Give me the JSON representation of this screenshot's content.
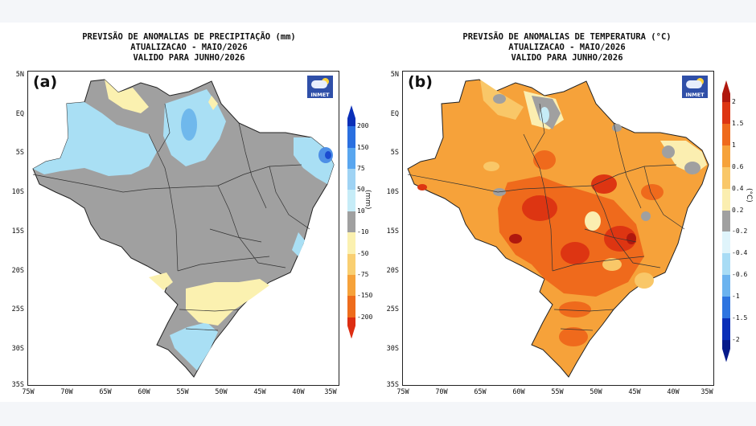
{
  "panels": [
    {
      "letter": "(a)",
      "title_lines": [
        "PREVISÃO DE ANOMALIAS DE PRECIPITAÇÃO (mm)",
        "ATUALIZACAO - MAIO/2026",
        "VALIDO PARA JUNHO/2026"
      ],
      "logo_text": "INMET",
      "y_ticks": [
        "5N",
        "EQ",
        "5S",
        "10S",
        "15S",
        "20S",
        "25S",
        "30S",
        "35S"
      ],
      "x_ticks": [
        "75W",
        "70W",
        "65W",
        "60W",
        "55W",
        "50W",
        "45W",
        "40W",
        "35W"
      ],
      "colorbar_unit": "(mm)",
      "colorbar_labels": [
        "200",
        "150",
        "75",
        "50",
        "10",
        "-10",
        "-50",
        "-75",
        "-150",
        "-200"
      ],
      "colorbar_colors": [
        "#0a2fb8",
        "#2a6fe0",
        "#59a6ef",
        "#9fd3f4",
        "#c6ecf7",
        "#a0a0a0",
        "#fbf1b0",
        "#f9cf71",
        "#f6a23a",
        "#ee6c1c",
        "#dd2d12"
      ]
    },
    {
      "letter": "(b)",
      "title_lines": [
        "PREVISÃO DE ANOMALIAS DE TEMPERATURA (°C)",
        "ATUALIZACAO - MAIO/2026",
        "VALIDO PARA JUNHO/2026"
      ],
      "logo_text": "INMET",
      "y_ticks": [
        "5N",
        "EQ",
        "5S",
        "10S",
        "15S",
        "20S",
        "25S",
        "30S",
        "35S"
      ],
      "x_ticks": [
        "75W",
        "70W",
        "65W",
        "60W",
        "55W",
        "50W",
        "45W",
        "40W",
        "35W"
      ],
      "colorbar_unit": "(°C)",
      "colorbar_labels": [
        "2",
        "1.5",
        "1",
        "0.6",
        "0.4",
        "0.2",
        "-0.2",
        "-0.4",
        "-0.6",
        "-1",
        "-1.5",
        "-2"
      ],
      "colorbar_colors": [
        "#b0180e",
        "#dd3512",
        "#ef6a1c",
        "#f6a23a",
        "#f9c768",
        "#fbeeb0",
        "#a0a0a0",
        "#dff4fb",
        "#a8dcf5",
        "#6bb3ef",
        "#2d74e0",
        "#0a2fb8",
        "#061a8a"
      ]
    }
  ]
}
